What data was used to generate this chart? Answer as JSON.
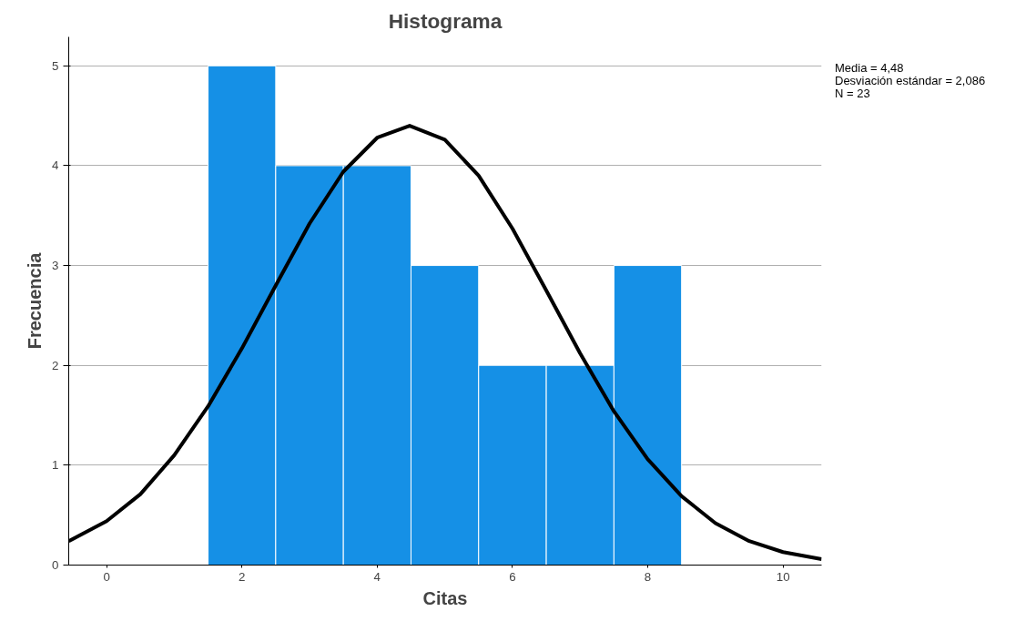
{
  "chart_data": {
    "type": "histogram",
    "title": "Histograma",
    "xlabel": "Citas",
    "ylabel": "Frecuencia",
    "series": [
      {
        "color": "#1590e6",
        "bins": [
          1.5,
          2.5,
          3.5,
          4.5,
          5.5,
          6.5,
          7.5,
          8.5
        ],
        "values": [
          5,
          4,
          4,
          3,
          2,
          2,
          3
        ]
      },
      {
        "type": "line",
        "color": "#000000",
        "x": [
          -0.56,
          0,
          0.5,
          1,
          1.5,
          2,
          2.5,
          3,
          3.5,
          4,
          4.48,
          5,
          5.5,
          6,
          6.5,
          7,
          7.5,
          8,
          8.5,
          9,
          9.5,
          10,
          10.57
        ],
        "values": [
          0.24,
          0.44,
          0.71,
          1.1,
          1.59,
          2.17,
          2.8,
          3.42,
          3.94,
          4.28,
          4.4,
          4.26,
          3.9,
          3.37,
          2.75,
          2.12,
          1.54,
          1.06,
          0.69,
          0.42,
          0.24,
          0.13,
          0.06
        ]
      }
    ],
    "xlim": [
      -0.56,
      10.57
    ],
    "ylim": [
      0,
      5.29
    ],
    "xticks": [
      0,
      2,
      4,
      6,
      8,
      10
    ],
    "yticks": [
      0,
      1,
      2,
      3,
      4,
      5
    ],
    "grid": "y",
    "annotations": [
      "Media = 4,48",
      "Desviación estándar = 2,086",
      "N = 23"
    ]
  }
}
